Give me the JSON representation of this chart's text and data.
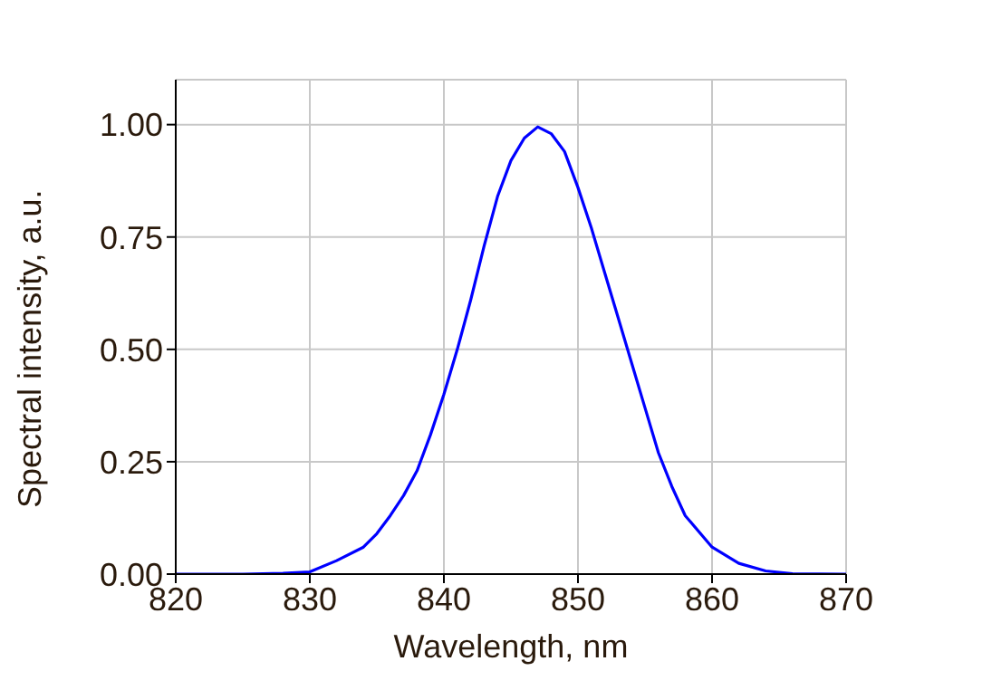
{
  "chart_data": {
    "type": "line",
    "xlabel": "Wavelength, nm",
    "ylabel": "Spectral intensity, a.u.",
    "x": [
      820,
      825,
      828,
      830,
      832,
      834,
      835,
      836,
      837,
      838,
      839,
      840,
      841,
      842,
      843,
      844,
      845,
      846,
      847,
      848,
      849,
      850,
      851,
      852,
      853,
      854,
      855,
      856,
      857,
      858,
      860,
      862,
      864,
      866,
      870
    ],
    "series": [
      {
        "color": "#0000ff",
        "values": [
          0,
          0,
          0.002,
          0.005,
          0.03,
          0.06,
          0.09,
          0.13,
          0.175,
          0.23,
          0.31,
          0.4,
          0.5,
          0.61,
          0.73,
          0.84,
          0.92,
          0.97,
          0.995,
          0.98,
          0.94,
          0.86,
          0.77,
          0.67,
          0.57,
          0.47,
          0.37,
          0.27,
          0.195,
          0.13,
          0.06,
          0.024,
          0.007,
          0.001,
          0
        ]
      }
    ],
    "xlim": [
      820,
      870
    ],
    "xticks": [
      820,
      830,
      840,
      850,
      860,
      870
    ],
    "ylim": [
      0,
      1.1
    ],
    "yticks": [
      {
        "value": 0,
        "label": "0.00"
      },
      {
        "value": 0.25,
        "label": "0.25"
      },
      {
        "value": 0.5,
        "label": "0.50"
      },
      {
        "value": 0.75,
        "label": "0.75"
      },
      {
        "value": 1,
        "label": "1.00"
      }
    ],
    "grid": true,
    "marker": "none",
    "line_style": "solid"
  }
}
